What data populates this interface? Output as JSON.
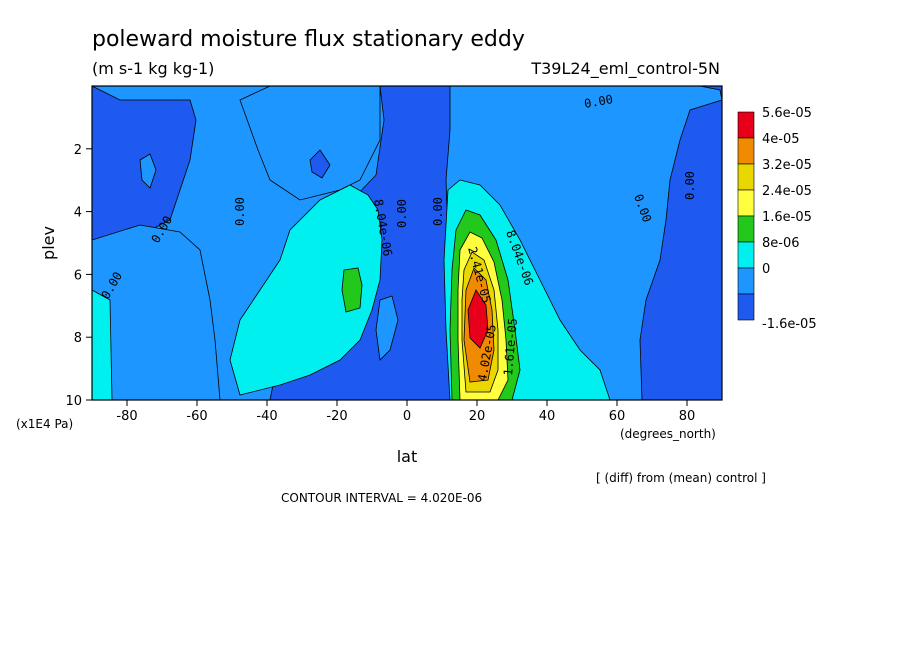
{
  "chart_data": {
    "type": "heatmap",
    "title": "poleward moisture flux stationary eddy",
    "units": "(m s-1 kg kg-1)",
    "run_label": "T39L24_eml_control-5N",
    "xlabel": "lat",
    "x_units": "(degrees_north)",
    "ylabel": "plev",
    "y_units": "(x1E4 Pa)",
    "note": "[ (diff) from (mean) control ]",
    "contour_interval": "CONTOUR INTERVAL = 4.020E-06",
    "xlim": [
      -90,
      90
    ],
    "ylim": [
      10,
      0
    ],
    "x_ticks": [
      "-80",
      "-60",
      "-40",
      "-20",
      "0",
      "20",
      "40",
      "60",
      "80"
    ],
    "x_tick_values": [
      -80,
      -60,
      -40,
      -20,
      0,
      20,
      40,
      60,
      80
    ],
    "y_ticks": [
      "2",
      "4",
      "6",
      "8",
      "10"
    ],
    "y_tick_values": [
      2,
      4,
      6,
      8,
      10
    ],
    "colorbar": {
      "labels": [
        "5.6e-05",
        "4e-05",
        "3.2e-05",
        "2.4e-05",
        "1.6e-05",
        "8e-06",
        "0",
        "-1.6e-05"
      ],
      "colors": [
        "#e8001a",
        "#f08a00",
        "#e8d800",
        "#ffff40",
        "#22c81a",
        "#00f0f0",
        "#1e96ff",
        "#1e5af0"
      ]
    },
    "contour_labels": [
      "0.00",
      "0.00",
      "0.00",
      "0.00",
      "0.00",
      "0.00",
      "0.00",
      "0.00",
      "8.04e-06",
      "8.04e-06",
      "2.41e-05",
      "4.02e-05",
      "1.61e-05"
    ],
    "features": [
      {
        "lat": 19,
        "plev": 7.2,
        "value": 5.6e-05,
        "desc": "maximum"
      },
      {
        "lat": -15,
        "plev": 6.7,
        "value": 1.6e-05,
        "desc": "secondary maximum"
      }
    ]
  }
}
